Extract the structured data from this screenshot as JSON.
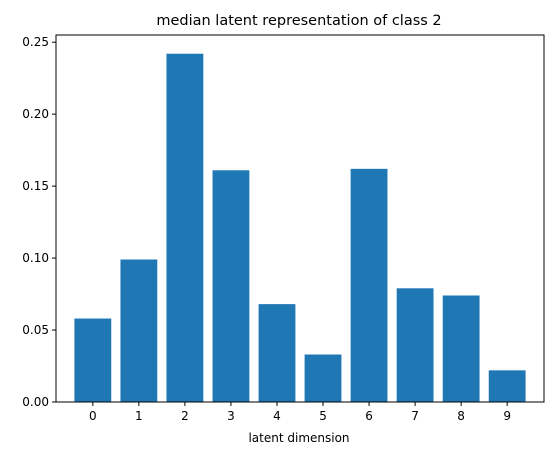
{
  "chart_data": {
    "type": "bar",
    "title": "median latent representation of class 2",
    "xlabel": "latent dimension",
    "ylabel": "",
    "categories": [
      "0",
      "1",
      "2",
      "3",
      "4",
      "5",
      "6",
      "7",
      "8",
      "9"
    ],
    "values": [
      0.058,
      0.099,
      0.242,
      0.161,
      0.068,
      0.033,
      0.162,
      0.079,
      0.074,
      0.022
    ],
    "ylim": [
      0,
      0.255
    ],
    "yticks": [
      0.0,
      0.05,
      0.1,
      0.15,
      0.2,
      0.25
    ],
    "ytick_labels": [
      "0.00",
      "0.05",
      "0.10",
      "0.15",
      "0.20",
      "0.25"
    ],
    "bar_color": "#1f77b4",
    "grid": false,
    "legend": "none"
  }
}
